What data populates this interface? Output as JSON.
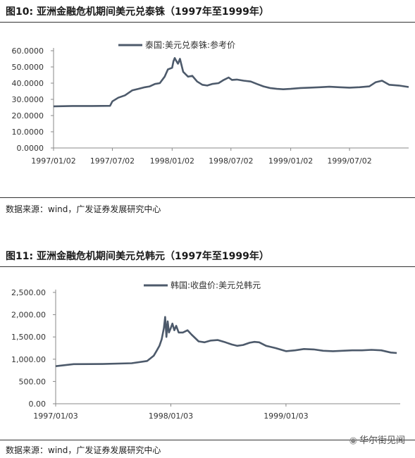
{
  "figure10": {
    "title_label": "图10:",
    "title_text": "亚洲金融危机期间美元兑泰铢（1997年至1999年）",
    "source": "数据来源：wind，广发证券发展研究中心"
  },
  "figure11": {
    "title_label": "图11:",
    "title_text": "亚洲金融危机期间美元兑韩元（1997年至1999年）",
    "source": "数据来源：wind，广发证券发展研究中心"
  },
  "watermark": {
    "text": "华尔街见闻",
    "icon": "wallstreetcn-logo-icon"
  },
  "colors": {
    "series": "#4d5a6b",
    "axis": "#888888",
    "text": "#333333"
  },
  "chart_data": [
    {
      "type": "line",
      "title": "",
      "xlabel": "",
      "ylabel": "",
      "ylim": [
        0,
        60
      ],
      "yticks": [
        0,
        10,
        20,
        30,
        40,
        50,
        60
      ],
      "ytick_labels": [
        "0.0000",
        "10.0000",
        "20.0000",
        "30.0000",
        "40.0000",
        "50.0000",
        "60.0000"
      ],
      "xlim": [
        "1997-01-02",
        "1999-12-31"
      ],
      "xticks": [
        "1997-01-02",
        "1997-07-02",
        "1998-01-02",
        "1998-07-02",
        "1999-01-02",
        "1999-07-02"
      ],
      "xtick_labels": [
        "1997/01/02",
        "1997/07/02",
        "1998/01/02",
        "1998/07/02",
        "1999/01/02",
        "1999/07/02"
      ],
      "legend_position": "top-center",
      "grid": false,
      "series": [
        {
          "name": "泰国:美元兑泰铢:参考价",
          "x": [
            "1997-01-02",
            "1997-03-01",
            "1997-05-01",
            "1997-06-25",
            "1997-07-02",
            "1997-07-20",
            "1997-08-10",
            "1997-09-01",
            "1997-09-20",
            "1997-10-10",
            "1997-10-25",
            "1997-11-10",
            "1997-11-25",
            "1997-12-10",
            "1997-12-20",
            "1998-01-02",
            "1998-01-06",
            "1998-01-10",
            "1998-01-14",
            "1998-01-20",
            "1998-01-26",
            "1998-02-05",
            "1998-02-20",
            "1998-03-05",
            "1998-03-20",
            "1998-04-05",
            "1998-04-20",
            "1998-05-05",
            "1998-05-25",
            "1998-06-10",
            "1998-06-25",
            "1998-07-05",
            "1998-07-20",
            "1998-08-10",
            "1998-09-01",
            "1998-09-20",
            "1998-10-10",
            "1998-10-30",
            "1998-11-20",
            "1998-12-10",
            "1999-01-02",
            "1999-02-01",
            "1999-03-01",
            "1999-04-01",
            "1999-05-01",
            "1999-06-01",
            "1999-07-02",
            "1999-08-01",
            "1999-09-01",
            "1999-09-20",
            "1999-10-10",
            "1999-11-01",
            "1999-12-01",
            "1999-12-31"
          ],
          "y": [
            25.7,
            25.9,
            25.9,
            26.0,
            28.8,
            31.0,
            32.5,
            35.5,
            36.5,
            37.5,
            38.0,
            39.5,
            40.0,
            44.0,
            48.5,
            49.5,
            53.5,
            55.5,
            54.0,
            52.0,
            55.0,
            47.0,
            44.0,
            44.5,
            41.0,
            39.0,
            38.5,
            39.5,
            40.0,
            42.0,
            43.5,
            42.0,
            42.2,
            41.5,
            41.0,
            39.5,
            38.0,
            37.0,
            36.5,
            36.2,
            36.5,
            37.0,
            37.2,
            37.5,
            37.8,
            37.5,
            37.2,
            37.5,
            38.0,
            40.5,
            41.5,
            39.0,
            38.5,
            37.6
          ]
        }
      ]
    },
    {
      "type": "line",
      "title": "",
      "xlabel": "",
      "ylabel": "",
      "ylim": [
        0,
        2500
      ],
      "yticks": [
        0,
        500,
        1000,
        1500,
        2000,
        2500
      ],
      "ytick_labels": [
        "0.00",
        "500.00",
        "1,000.00",
        "1,500.00",
        "2,000.00",
        "2,500.00"
      ],
      "xlim": [
        "1997-01-03",
        "1999-12-31"
      ],
      "xticks": [
        "1997-01-03",
        "1998-01-03",
        "1999-01-03"
      ],
      "xtick_labels": [
        "1997/01/03",
        "1998/01/03",
        "1999/01/03"
      ],
      "legend_position": "top-center",
      "grid": false,
      "series": [
        {
          "name": "韩国:收盘价:美元兑韩元",
          "x": [
            "1997-01-03",
            "1997-03-01",
            "1997-06-01",
            "1997-09-01",
            "1997-10-20",
            "1997-11-10",
            "1997-11-20",
            "1997-11-28",
            "1997-12-05",
            "1997-12-12",
            "1997-12-16",
            "1997-12-20",
            "1997-12-24",
            "1997-12-28",
            "1998-01-03",
            "1998-01-08",
            "1998-01-14",
            "1998-01-20",
            "1998-01-28",
            "1998-02-10",
            "1998-02-25",
            "1998-03-10",
            "1998-04-01",
            "1998-04-20",
            "1998-05-10",
            "1998-06-01",
            "1998-06-25",
            "1998-07-15",
            "1998-08-01",
            "1998-08-20",
            "1998-09-10",
            "1998-09-25",
            "1998-10-10",
            "1998-11-01",
            "1998-12-01",
            "1999-01-03",
            "1999-02-01",
            "1999-03-01",
            "1999-04-01",
            "1999-05-01",
            "1999-06-01",
            "1999-07-01",
            "1999-08-01",
            "1999-09-01",
            "1999-10-01",
            "1999-11-01",
            "1999-12-01",
            "1999-12-20"
          ],
          "y": [
            844,
            890,
            892,
            910,
            960,
            1080,
            1200,
            1300,
            1450,
            1700,
            1950,
            1500,
            1850,
            1600,
            1700,
            1800,
            1650,
            1750,
            1600,
            1600,
            1650,
            1550,
            1400,
            1380,
            1420,
            1430,
            1380,
            1330,
            1300,
            1320,
            1370,
            1390,
            1380,
            1300,
            1250,
            1180,
            1200,
            1230,
            1220,
            1190,
            1180,
            1190,
            1200,
            1200,
            1210,
            1200,
            1150,
            1140
          ]
        }
      ]
    }
  ]
}
